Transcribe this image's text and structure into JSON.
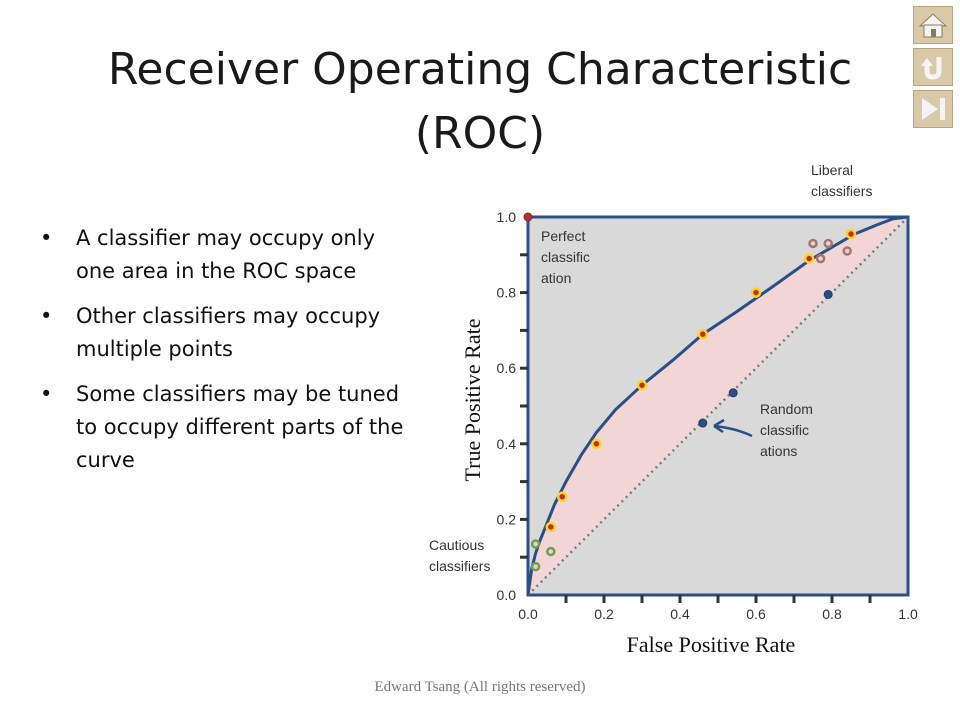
{
  "slide": {
    "title_line1": "Receiver Operating Characteristic",
    "title_line2": "(ROC)",
    "bullets": [
      "A classifier may occupy only one area in the ROC space",
      "Other classifiers may occupy multiple points",
      "Some classifiers may be tuned to occupy different parts of the curve"
    ],
    "footer": "Edward Tsang (All rights reserved)"
  },
  "nav": {
    "icons": [
      "home-icon",
      "undo-icon",
      "skip-end-icon"
    ]
  },
  "chart_data": {
    "type": "line",
    "xlabel": "False Positive Rate",
    "ylabel": "True Positive Rate",
    "xlim": [
      0,
      1
    ],
    "ylim": [
      0,
      1
    ],
    "xticks": [
      "0.0",
      "0.2",
      "0.4",
      "0.6",
      "0.8",
      "1.0"
    ],
    "yticks": [
      "0.0",
      "0.2",
      "0.4",
      "0.6",
      "0.8",
      "1.0"
    ],
    "grid": false,
    "colors": {
      "curve": "#2a4f86",
      "fill": "#f2d6d6",
      "plot_bg": "#d9d9d9",
      "diagonal": "#7a7a7a",
      "point_fill": "#b83030",
      "point_ring": "#ffd21f",
      "random_point": "#2a4f86",
      "cautious_ring": "#7a9a4a",
      "liberal_ring": "#b07070"
    },
    "curve": {
      "x": [
        0,
        0.01,
        0.02,
        0.03,
        0.05,
        0.07,
        0.1,
        0.14,
        0.18,
        0.23,
        0.3,
        0.38,
        0.46,
        0.55,
        0.65,
        0.74,
        0.8,
        0.86,
        0.92,
        0.96,
        1.0
      ],
      "y": [
        0,
        0.07,
        0.11,
        0.14,
        0.19,
        0.24,
        0.3,
        0.37,
        0.43,
        0.49,
        0.555,
        0.62,
        0.69,
        0.75,
        0.82,
        0.885,
        0.92,
        0.955,
        0.98,
        0.995,
        1.0
      ]
    },
    "series": [
      {
        "x": [
          0.0,
          0.06,
          0.09,
          0.18,
          0.3,
          0.46,
          0.6,
          0.74,
          0.85
        ],
        "y": [
          1.0,
          0.18,
          0.26,
          0.4,
          0.555,
          0.69,
          0.8,
          0.89,
          0.955
        ]
      },
      {
        "x": [
          0.46,
          0.54,
          0.79
        ],
        "y": [
          0.455,
          0.535,
          0.795
        ]
      },
      {
        "x": [
          0.02,
          0.06,
          0.02
        ],
        "y": [
          0.135,
          0.115,
          0.075
        ]
      },
      {
        "x": [
          0.75,
          0.79,
          0.84,
          0.77
        ],
        "y": [
          0.93,
          0.93,
          0.91,
          0.89
        ]
      }
    ],
    "annotations": {
      "perfect": [
        "Perfect",
        "classific",
        "ation"
      ],
      "liberal": [
        "Liberal",
        "classifiers"
      ],
      "random": [
        "Random",
        "classific",
        "ations"
      ],
      "cautious": [
        "Cautious",
        "classifiers"
      ]
    }
  }
}
